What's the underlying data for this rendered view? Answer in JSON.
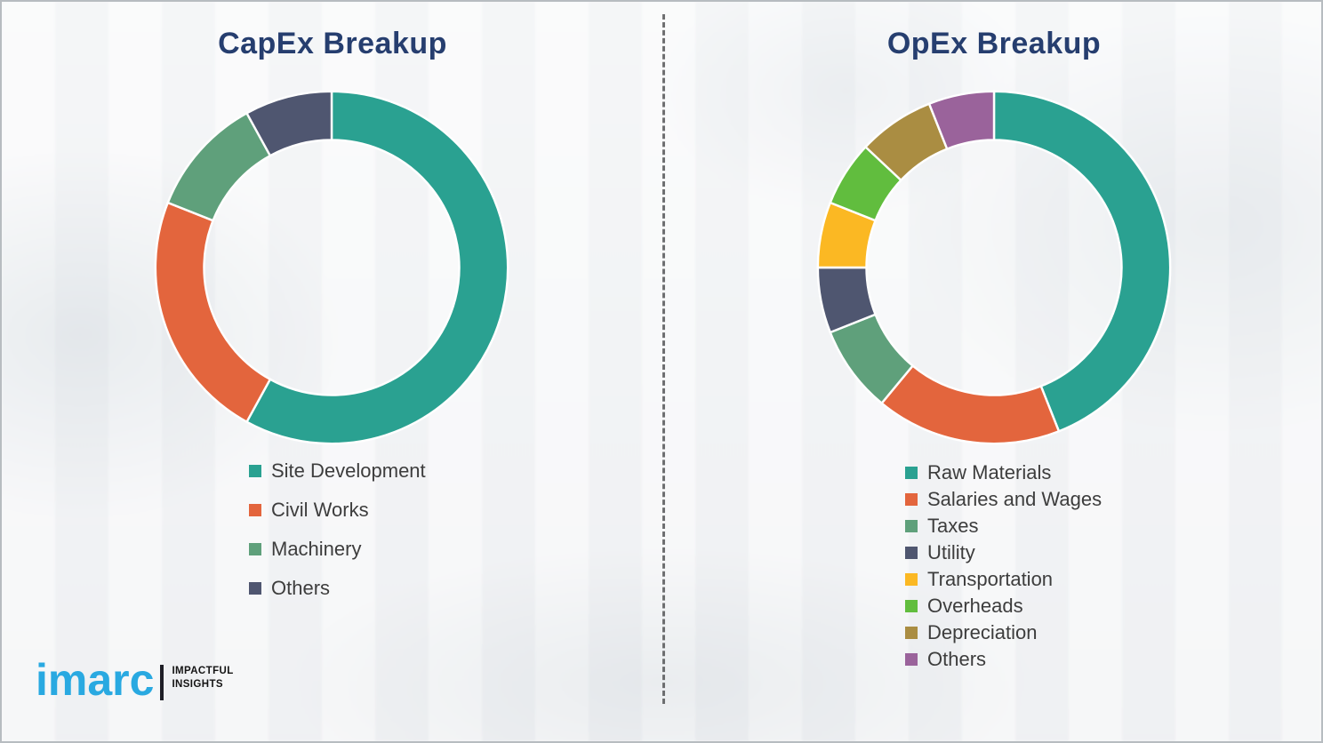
{
  "chart_data": [
    {
      "type": "pie",
      "subtype": "donut",
      "title": "CapEx Breakup",
      "categories": [
        "Site Development",
        "Civil Works",
        "Machinery",
        "Others"
      ],
      "values": [
        58,
        23,
        11,
        8
      ],
      "colors": [
        "#2aa191",
        "#e3653d",
        "#5fa07b",
        "#4f5670"
      ],
      "start_angle_deg": 0,
      "direction": "clockwise",
      "legend_position": "below-left"
    },
    {
      "type": "pie",
      "subtype": "donut",
      "title": "OpEx Breakup",
      "categories": [
        "Raw Materials",
        "Salaries and Wages",
        "Taxes",
        "Utility",
        "Transportation",
        "Overheads",
        "Depreciation",
        "Others"
      ],
      "values": [
        44,
        17,
        8,
        6,
        6,
        6,
        7,
        6
      ],
      "colors": [
        "#2aa191",
        "#e3653d",
        "#5fa07b",
        "#4f5670",
        "#fbb823",
        "#61bd3e",
        "#aa8d42",
        "#9a639b"
      ],
      "start_angle_deg": 0,
      "direction": "clockwise",
      "legend_position": "below-left"
    }
  ],
  "theme": {
    "title_color": "#263e6f",
    "legend_text_color": "#3d3d3d",
    "divider_color": "#58595b",
    "background": "#f5f6f7",
    "slice_gap_color": "#ffffff"
  },
  "logo": {
    "brand": "imarc",
    "brand_color": "#29a9e1",
    "tagline_line1": "IMPACTFUL",
    "tagline_line2": "INSIGHTS"
  }
}
